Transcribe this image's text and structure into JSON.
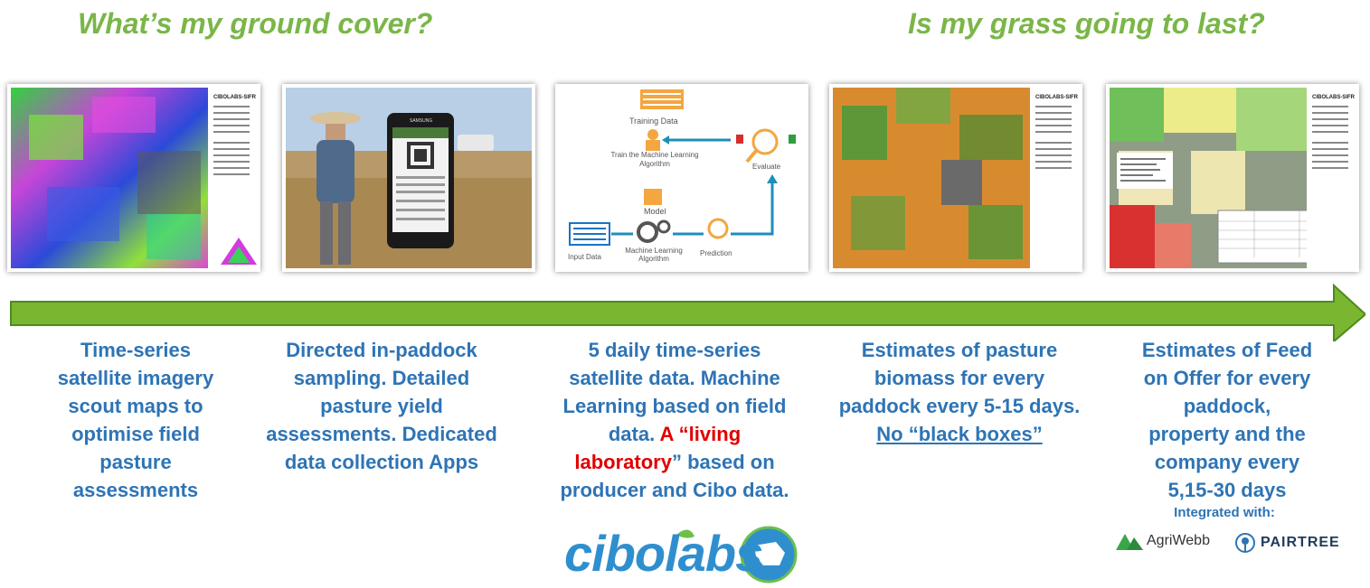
{
  "headings": {
    "left": "What’s my ground cover?",
    "right": "Is my grass going to last?"
  },
  "panels": [
    {
      "name": "ground-cover-map",
      "title": "CIBOLABS-SIFR"
    },
    {
      "name": "field-sampling-photo",
      "phone_brand": "SAMSUNG"
    },
    {
      "name": "ml-workflow",
      "labels": {
        "training": "Training Data",
        "train": "Train the Machine Learning Algorithm",
        "model": "Model",
        "input": "Input Data",
        "algo": "Machine Learning Algorithm",
        "prediction": "Prediction",
        "evaluate": "Evaluate"
      }
    },
    {
      "name": "biomass-map",
      "title": "CIBOLABS-SIFR"
    },
    {
      "name": "feed-on-offer-map",
      "title": "CIBOLABS-SIFR"
    }
  ],
  "captions": {
    "c1": [
      "Time-series",
      "satellite imagery",
      "scout maps to",
      "optimise field",
      "pasture",
      "assessments"
    ],
    "c2": [
      "Directed in-paddock",
      "sampling. Detailed",
      "pasture yield",
      "assessments. Dedicated",
      "data collection Apps"
    ],
    "c3": {
      "l1": "5 daily time-series",
      "l2": "satellite data. Machine",
      "l3": "Learning based on field",
      "l4a": "data. ",
      "l4b": "A “living",
      "l5a": "laboratory",
      "l5b": "” based on",
      "l6": "producer and Cibo data."
    },
    "c4": [
      "Estimates of pasture",
      "biomass for every",
      "paddock every 5-15 days.",
      "No “black boxes”"
    ],
    "c5": [
      "Estimates of Feed",
      "on Offer for every",
      "paddock,",
      "property and the",
      "company every",
      "5,15-30 days"
    ]
  },
  "integrated": {
    "label": "Integrated with:",
    "partners": [
      "AgriWebb",
      "PAIRTREE"
    ]
  },
  "brand": {
    "logo": "cibolabs"
  },
  "colors": {
    "heading": "#7ab648",
    "caption": "#2e74b5",
    "arrow": "#7ab62f",
    "highlight": "#e00000"
  }
}
